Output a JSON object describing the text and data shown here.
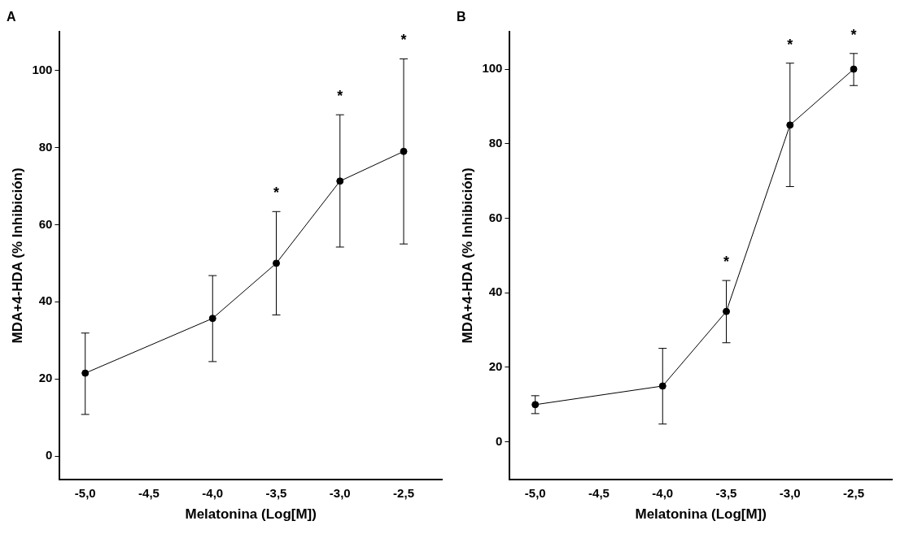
{
  "chart_data": [
    {
      "type": "line",
      "title": "A",
      "xlabel": "Melatonina (Log[M])",
      "ylabel": "MDA+4-HDA (% Inhibición)",
      "x": [
        -5.0,
        -4.0,
        -3.5,
        -3.0,
        -2.5
      ],
      "series": [
        {
          "color": "#000000",
          "values": [
            21.5,
            35.7,
            50,
            71.3,
            79
          ],
          "errors": [
            [
              10.8,
              31.9
            ],
            [
              24.5,
              46.8
            ],
            [
              36.6,
              63.4
            ],
            [
              54.2,
              88.5
            ],
            [
              55,
              103
            ]
          ]
        }
      ],
      "xlim": [
        -5.2,
        -2.2
      ],
      "xticks": [
        {
          "value": -5.0,
          "label": "-5,0"
        },
        {
          "value": -4.5,
          "label": "-4,5"
        },
        {
          "value": -4.0,
          "label": "-4,0"
        },
        {
          "value": -3.5,
          "label": "-3,5"
        },
        {
          "value": -3.0,
          "label": "-3,0"
        },
        {
          "value": -2.5,
          "label": "-2,5"
        }
      ],
      "ylim": [
        -6,
        110
      ],
      "yticks": [
        0,
        20,
        40,
        60,
        80,
        100
      ],
      "annotations": [
        "*",
        "*",
        "*"
      ],
      "marker": "circle",
      "line_style": "solid",
      "grid": false,
      "legend": false
    },
    {
      "type": "line",
      "title": "B",
      "xlabel": "Melatonina (Log[M])",
      "ylabel": "MDA+4-HDA (% Inhibición)",
      "x": [
        -5.0,
        -4.0,
        -3.5,
        -3.0,
        -2.5
      ],
      "series": [
        {
          "color": "#000000",
          "values": [
            10,
            15,
            35,
            85,
            100
          ],
          "errors": [
            [
              7.6,
              12.4
            ],
            [
              4.8,
              25.1
            ],
            [
              26.6,
              43.3
            ],
            [
              68.5,
              101.6
            ],
            [
              95.6,
              104.2
            ]
          ]
        }
      ],
      "xlim": [
        -5.2,
        -2.2
      ],
      "xticks": [
        {
          "value": -5.0,
          "label": "-5,0"
        },
        {
          "value": -4.5,
          "label": "-4,5"
        },
        {
          "value": -4.0,
          "label": "-4,0"
        },
        {
          "value": -3.5,
          "label": "-3,5"
        },
        {
          "value": -3.0,
          "label": "-3,0"
        },
        {
          "value": -2.5,
          "label": "-2,5"
        }
      ],
      "ylim": [
        -10,
        110
      ],
      "yticks": [
        0,
        20,
        40,
        60,
        80,
        100
      ],
      "annotations": [
        "*",
        "*",
        "*"
      ],
      "marker": "circle",
      "line_style": "solid",
      "grid": false,
      "legend": false
    }
  ]
}
